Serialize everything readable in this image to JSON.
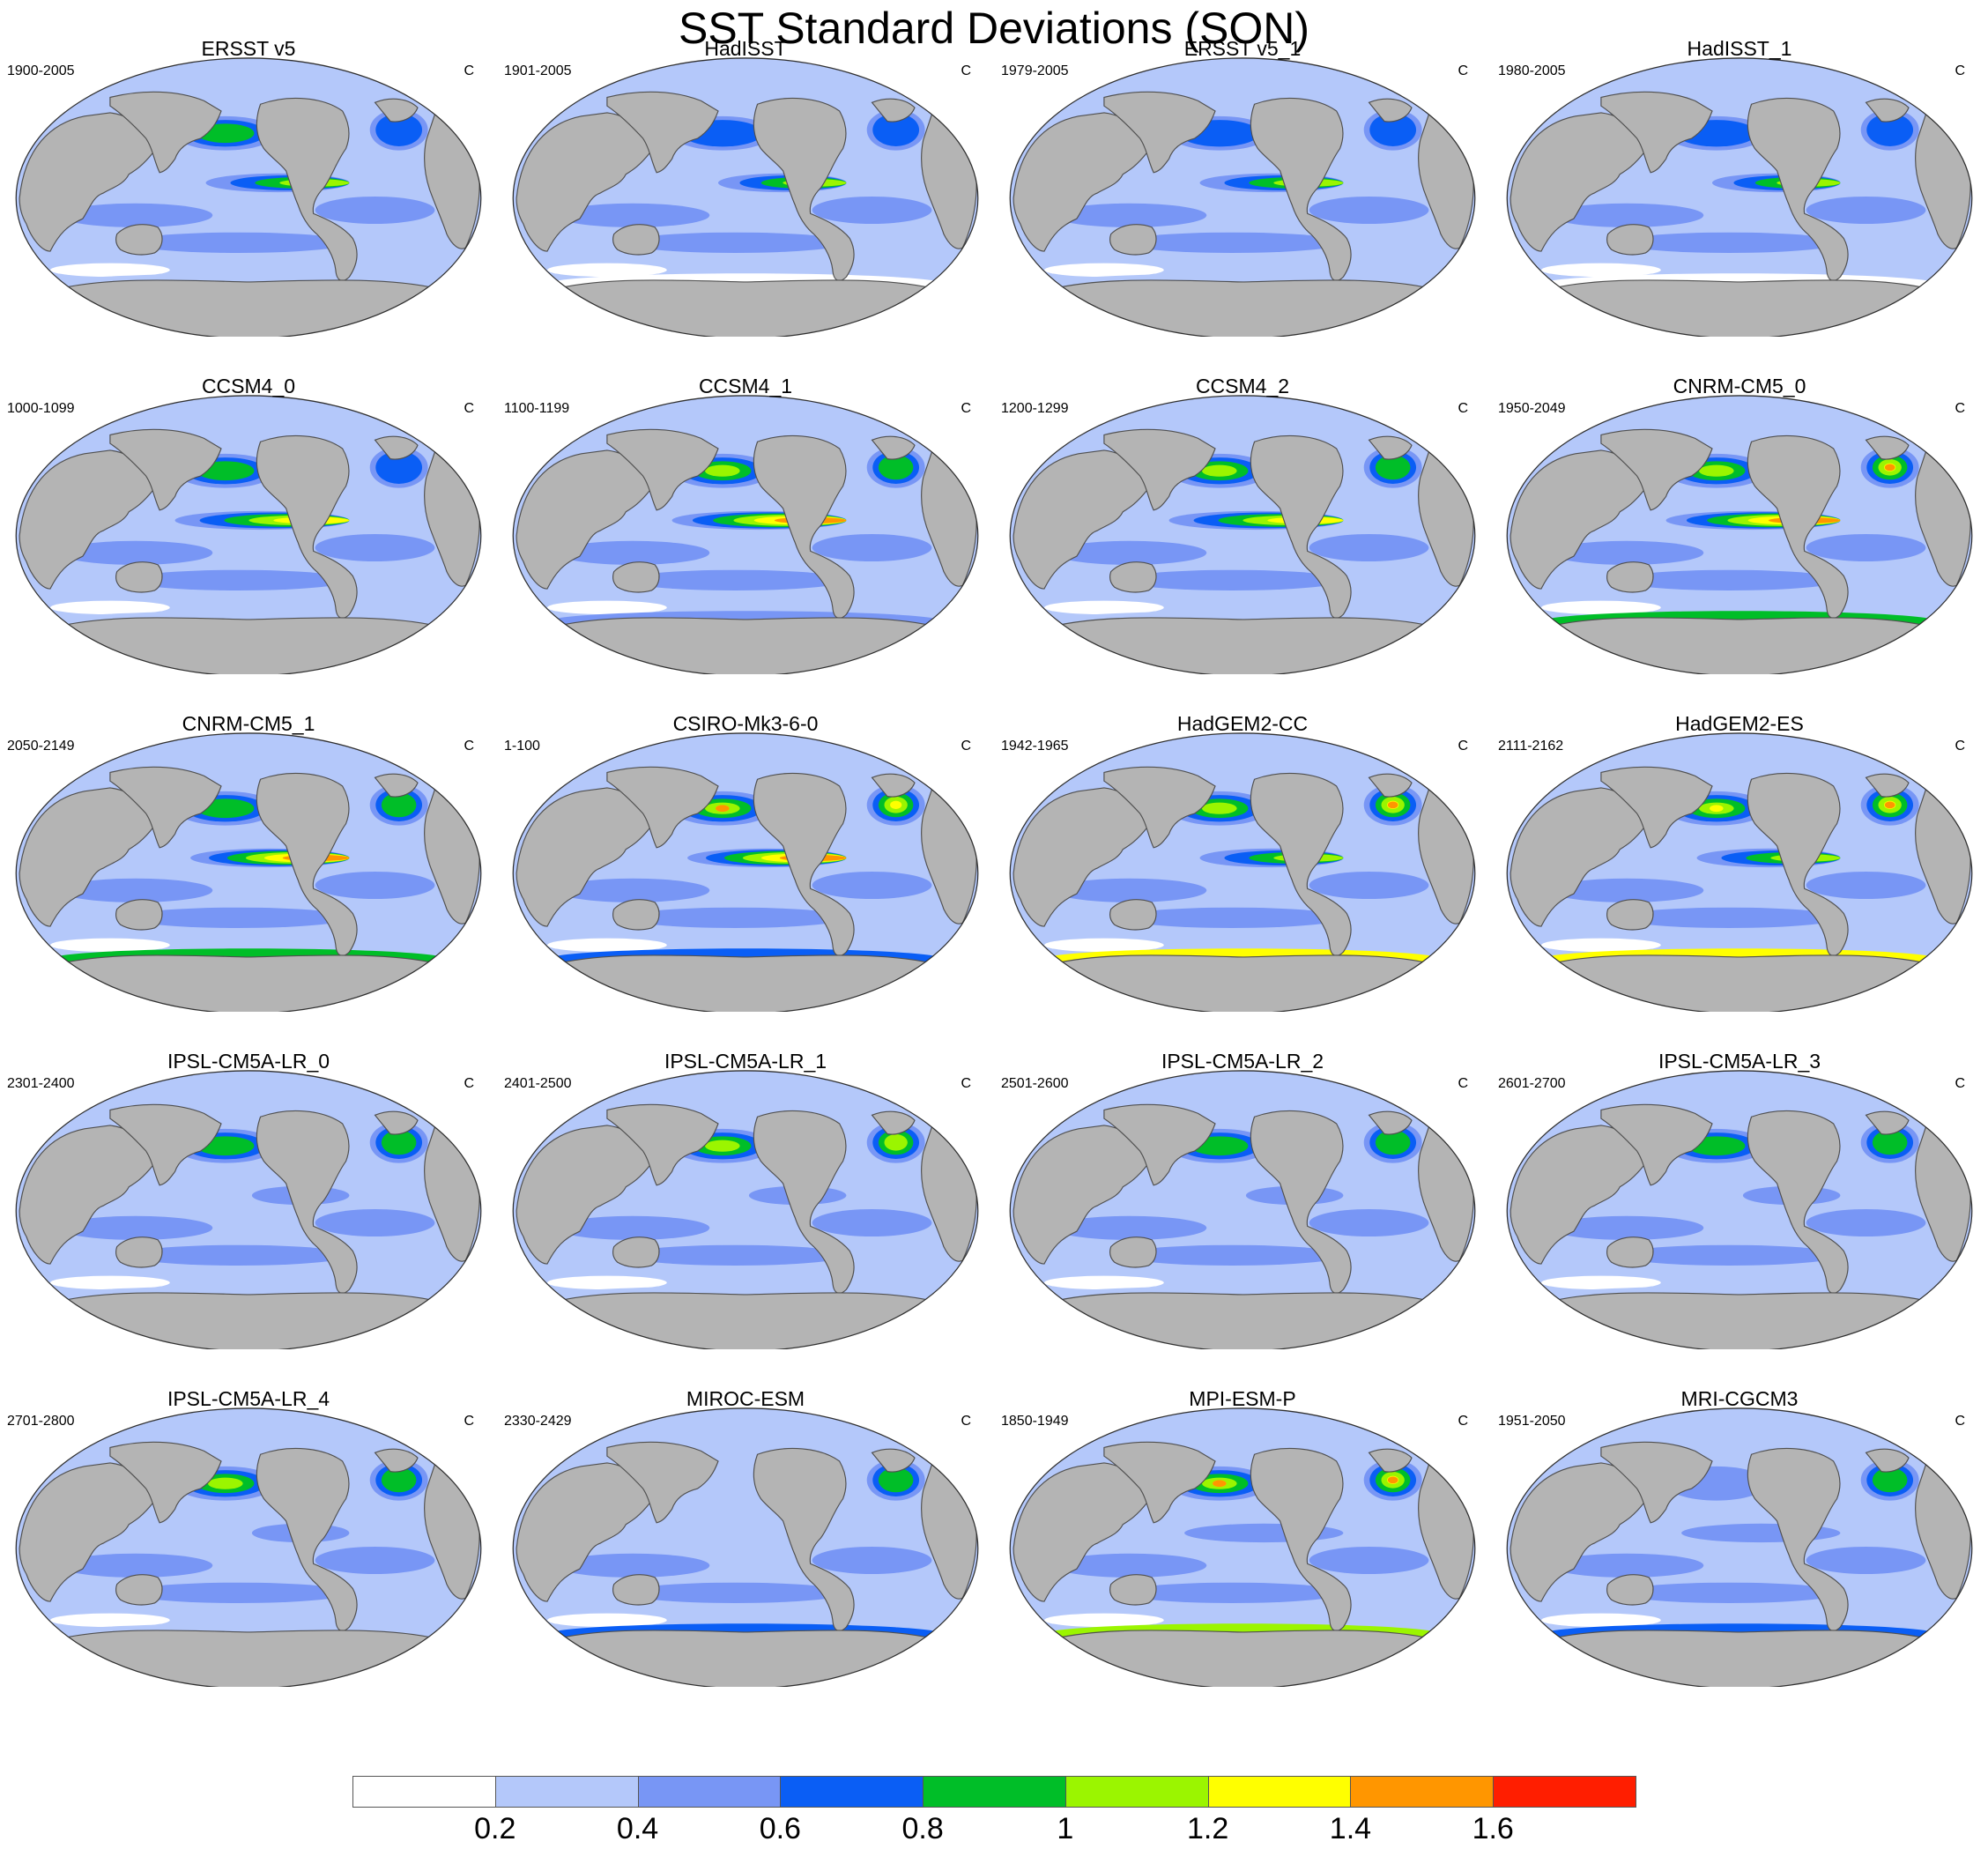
{
  "figure": {
    "title": "SST Standard Deviations (SON)"
  },
  "chart_data": {
    "type": "heatmap",
    "description_kind": "4x5 panel grid of global ocean maps, Robinson-like projection",
    "variable": "SST standard deviation",
    "season": "SON",
    "units": "C",
    "panels": [
      {
        "title": "ERSST v5",
        "period": "1900-2005",
        "units": "C",
        "enso_peak": 1.2,
        "enso_extent": 0.8,
        "n_pacific": 1.0,
        "n_atlantic": 0.8,
        "southern": 0.2,
        "atl_hot": false
      },
      {
        "title": "HadISST",
        "period": "1901-2005",
        "units": "C",
        "enso_peak": 1.2,
        "enso_extent": 0.7,
        "n_pacific": 0.8,
        "n_atlantic": 0.8,
        "southern": 0.0,
        "atl_hot": false
      },
      {
        "title": "ERSST v5_1",
        "period": "1979-2005",
        "units": "C",
        "enso_peak": 1.2,
        "enso_extent": 0.8,
        "n_pacific": 0.8,
        "n_atlantic": 0.8,
        "southern": 0.2,
        "atl_hot": false
      },
      {
        "title": "HadISST_1",
        "period": "1980-2005",
        "units": "C",
        "enso_peak": 1.2,
        "enso_extent": 0.7,
        "n_pacific": 0.8,
        "n_atlantic": 0.8,
        "southern": 0.0,
        "atl_hot": false
      },
      {
        "title": "CCSM4_0",
        "period": "1000-1099",
        "units": "C",
        "enso_peak": 1.4,
        "enso_extent": 1.0,
        "n_pacific": 1.0,
        "n_atlantic": 0.8,
        "southern": 0.2,
        "atl_hot": false
      },
      {
        "title": "CCSM4_1",
        "period": "1100-1199",
        "units": "C",
        "enso_peak": 1.6,
        "enso_extent": 1.0,
        "n_pacific": 1.2,
        "n_atlantic": 1.0,
        "southern": 0.4,
        "atl_hot": false
      },
      {
        "title": "CCSM4_2",
        "period": "1200-1299",
        "units": "C",
        "enso_peak": 1.4,
        "enso_extent": 1.0,
        "n_pacific": 1.2,
        "n_atlantic": 1.0,
        "southern": 0.2,
        "atl_hot": false
      },
      {
        "title": "CNRM-CM5_0",
        "period": "1950-2049",
        "units": "C",
        "enso_peak": 1.6,
        "enso_extent": 1.0,
        "n_pacific": 1.2,
        "n_atlantic": 1.6,
        "southern": 0.8,
        "atl_hot": true
      },
      {
        "title": "CNRM-CM5_1",
        "period": "2050-2149",
        "units": "C",
        "enso_peak": 1.6,
        "enso_extent": 0.9,
        "n_pacific": 1.0,
        "n_atlantic": 1.0,
        "southern": 0.8,
        "atl_hot": false
      },
      {
        "title": "CSIRO-Mk3-6-0",
        "period": "1-100",
        "units": "C",
        "enso_peak": 1.6,
        "enso_extent": 0.9,
        "n_pacific": 1.6,
        "n_atlantic": 1.4,
        "southern": 0.6,
        "atl_hot": true
      },
      {
        "title": "HadGEM2-CC",
        "period": "1942-1965",
        "units": "C",
        "enso_peak": 1.2,
        "enso_extent": 0.8,
        "n_pacific": 1.2,
        "n_atlantic": 1.6,
        "southern": 1.2,
        "atl_hot": true
      },
      {
        "title": "HadGEM2-ES",
        "period": "2111-2162",
        "units": "C",
        "enso_peak": 1.2,
        "enso_extent": 0.8,
        "n_pacific": 1.4,
        "n_atlantic": 1.6,
        "southern": 1.2,
        "atl_hot": true
      },
      {
        "title": "IPSL-CM5A-LR_0",
        "period": "2301-2400",
        "units": "C",
        "enso_peak": 0.6,
        "enso_extent": 0.5,
        "n_pacific": 1.0,
        "n_atlantic": 1.0,
        "southern": 0.2,
        "atl_hot": false
      },
      {
        "title": "IPSL-CM5A-LR_1",
        "period": "2401-2500",
        "units": "C",
        "enso_peak": 0.6,
        "enso_extent": 0.5,
        "n_pacific": 1.2,
        "n_atlantic": 1.2,
        "southern": 0.2,
        "atl_hot": false
      },
      {
        "title": "IPSL-CM5A-LR_2",
        "period": "2501-2600",
        "units": "C",
        "enso_peak": 0.6,
        "enso_extent": 0.5,
        "n_pacific": 1.0,
        "n_atlantic": 1.0,
        "southern": 0.2,
        "atl_hot": false
      },
      {
        "title": "IPSL-CM5A-LR_3",
        "period": "2601-2700",
        "units": "C",
        "enso_peak": 0.6,
        "enso_extent": 0.5,
        "n_pacific": 1.0,
        "n_atlantic": 1.0,
        "southern": 0.2,
        "atl_hot": false
      },
      {
        "title": "IPSL-CM5A-LR_4",
        "period": "2701-2800",
        "units": "C",
        "enso_peak": 0.6,
        "enso_extent": 0.5,
        "n_pacific": 1.2,
        "n_atlantic": 1.0,
        "southern": 0.2,
        "atl_hot": false
      },
      {
        "title": "MIROC-ESM",
        "period": "2330-2429",
        "units": "C",
        "enso_peak": 0.4,
        "enso_extent": 0.5,
        "n_pacific": 0.4,
        "n_atlantic": 1.0,
        "southern": 0.6,
        "atl_hot": false
      },
      {
        "title": "MPI-ESM-P",
        "period": "1850-1949",
        "units": "C",
        "enso_peak": 0.6,
        "enso_extent": 0.9,
        "n_pacific": 1.6,
        "n_atlantic": 1.6,
        "southern": 1.0,
        "atl_hot": true
      },
      {
        "title": "MRI-CGCM3",
        "period": "1951-2050",
        "units": "C",
        "enso_peak": 0.6,
        "enso_extent": 0.9,
        "n_pacific": 0.6,
        "n_atlantic": 1.0,
        "southern": 0.6,
        "atl_hot": false
      }
    ],
    "colorbar": {
      "levels": [
        0.2,
        0.4,
        0.6,
        0.8,
        1.0,
        1.2,
        1.4,
        1.6
      ],
      "labels": [
        "0.2",
        "0.4",
        "0.6",
        "0.8",
        "1",
        "1.2",
        "1.4",
        "1.6"
      ],
      "colors": [
        "#ffffff",
        "#b4c8fa",
        "#7896f5",
        "#0a5ef5",
        "#00be28",
        "#9bf500",
        "#ffff00",
        "#ff9600",
        "#ff1e00"
      ]
    },
    "land_color": "#b4b4b4",
    "coast_color": "#505050"
  }
}
